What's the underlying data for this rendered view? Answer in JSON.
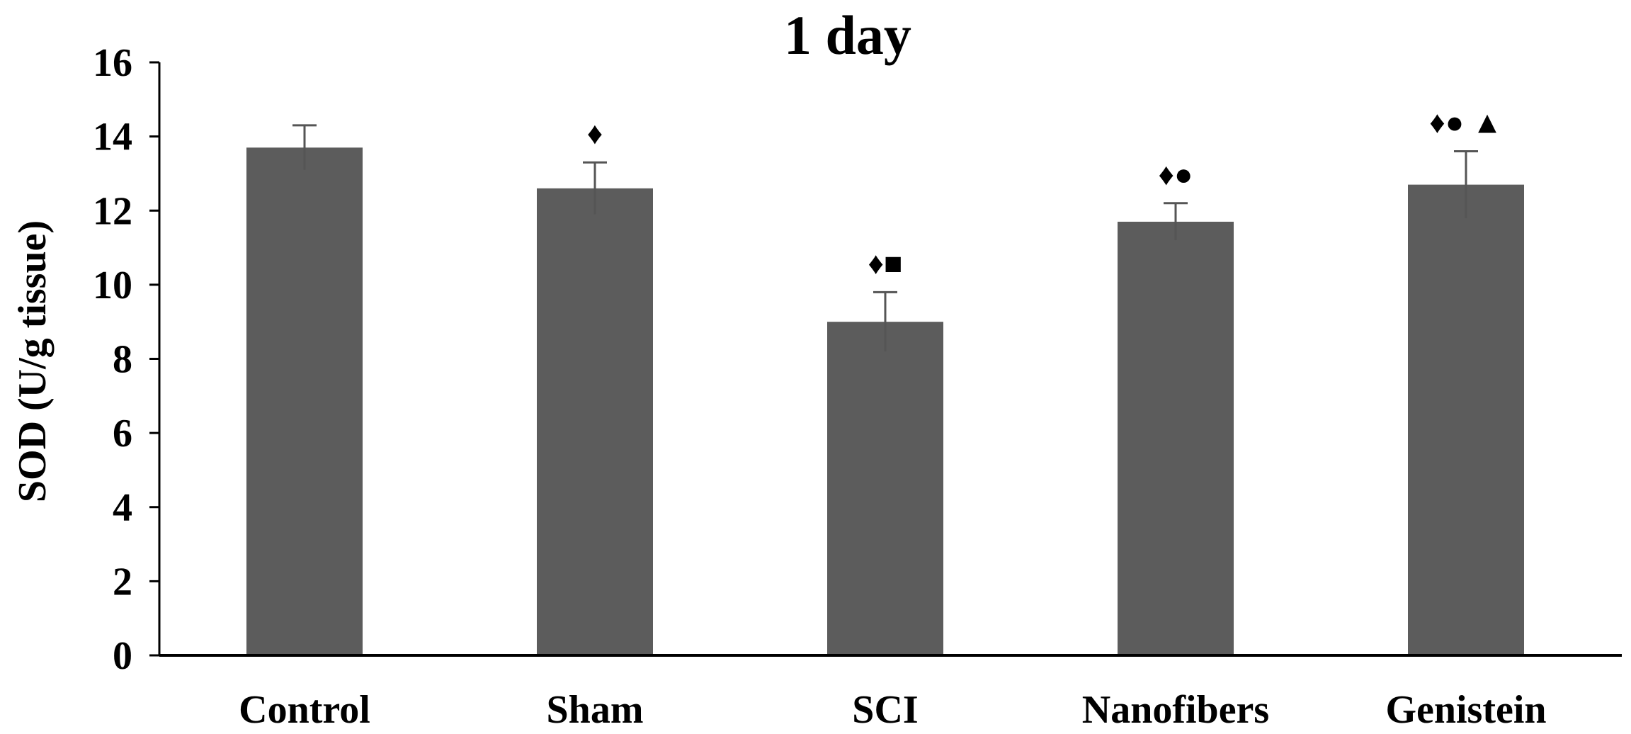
{
  "chart_data": {
    "type": "bar",
    "title": "1 day",
    "xlabel": "",
    "ylabel": "SOD (U/g tissue)",
    "ylim": [
      0,
      16
    ],
    "yticks": [
      0,
      2,
      4,
      6,
      8,
      10,
      12,
      14,
      16
    ],
    "categories": [
      "Control",
      "Sham",
      "SCI",
      "Nanofibers",
      "Genistein"
    ],
    "values": [
      13.7,
      12.6,
      9.0,
      11.7,
      12.7
    ],
    "error": [
      0.6,
      0.7,
      0.8,
      0.5,
      0.9
    ],
    "annotations": [
      "",
      "♦",
      "♦■",
      "♦●",
      "♦● ▲"
    ],
    "grid": false,
    "legend": "none",
    "colors": {
      "bar": "#5c5c5c",
      "error_bar": "#555555",
      "axis": "#000000",
      "text": "#000000"
    }
  }
}
